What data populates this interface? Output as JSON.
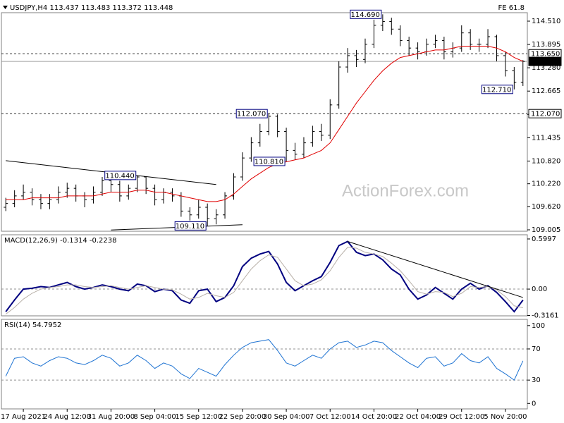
{
  "chart_data": [
    {
      "type": "ohlc",
      "title": "USDJPY,H4  113.437 113.483 113.372 113.448",
      "note": "FE 61.8",
      "watermark": "ActionForex.com",
      "color": "#000000",
      "categories": [
        null,
        null,
        "17 Aug 2021",
        null,
        null,
        null,
        null,
        "24 Aug 12:00",
        null,
        null,
        null,
        null,
        "31 Aug 20:00",
        null,
        null,
        null,
        null,
        "8 Sep 04:00",
        null,
        null,
        null,
        null,
        "15 Sep 12:00",
        null,
        null,
        null,
        null,
        "22 Sep 20:00",
        null,
        null,
        null,
        null,
        "30 Sep 04:00",
        null,
        null,
        null,
        null,
        "7 Oct 12:00",
        null,
        null,
        null,
        null,
        "14 Oct 20:00",
        null,
        null,
        null,
        null,
        "22 Oct 04:00",
        null,
        null,
        null,
        null,
        "29 Oct 12:00",
        null,
        null,
        null,
        null,
        "5 Nov 20:00",
        null,
        null
      ],
      "open": [
        109.6,
        109.7,
        109.9,
        110.0,
        109.8,
        109.7,
        109.8,
        110.0,
        110.1,
        109.9,
        109.8,
        110.0,
        110.3,
        110.2,
        109.9,
        110.1,
        110.4,
        110.1,
        109.8,
        110.0,
        109.9,
        109.5,
        109.4,
        109.6,
        109.3,
        109.4,
        109.9,
        110.4,
        110.9,
        111.3,
        111.6,
        112.0,
        111.6,
        111.1,
        111.0,
        111.3,
        111.6,
        111.5,
        112.3,
        113.3,
        113.6,
        113.5,
        113.9,
        114.4,
        114.5,
        114.3,
        114.0,
        113.8,
        113.7,
        113.9,
        114.0,
        113.7,
        113.8,
        114.2,
        113.9,
        113.9,
        114.1,
        113.6,
        113.2,
        112.9
      ],
      "high": [
        109.85,
        110.05,
        110.2,
        110.1,
        109.95,
        109.95,
        110.15,
        110.25,
        110.2,
        110.0,
        110.15,
        110.4,
        110.4,
        110.3,
        110.2,
        110.44,
        110.4,
        110.2,
        110.1,
        110.1,
        110.0,
        109.6,
        109.8,
        109.7,
        109.55,
        110.0,
        110.5,
        111.05,
        111.45,
        111.8,
        112.07,
        112.05,
        111.7,
        111.3,
        111.45,
        111.75,
        111.8,
        112.45,
        113.45,
        113.8,
        113.75,
        114.05,
        114.55,
        114.69,
        114.6,
        114.4,
        114.1,
        113.95,
        114.05,
        114.15,
        114.1,
        113.95,
        114.4,
        114.3,
        114.05,
        114.3,
        114.15,
        113.7,
        113.3,
        113.483
      ],
      "low": [
        109.5,
        109.6,
        109.8,
        109.65,
        109.55,
        109.55,
        109.7,
        109.85,
        109.75,
        109.6,
        109.7,
        109.9,
        110.0,
        109.75,
        109.8,
        110.0,
        109.95,
        109.65,
        109.7,
        109.75,
        109.35,
        109.25,
        109.3,
        109.11,
        109.15,
        109.3,
        109.8,
        110.3,
        110.8,
        111.2,
        111.5,
        111.45,
        110.81,
        110.85,
        110.9,
        111.2,
        111.35,
        111.4,
        112.2,
        113.15,
        113.3,
        113.4,
        113.8,
        114.25,
        114.15,
        113.85,
        113.6,
        113.5,
        113.6,
        113.8,
        113.5,
        113.55,
        113.7,
        113.75,
        113.7,
        113.8,
        113.45,
        113.05,
        112.71,
        112.8
      ],
      "close": [
        109.7,
        109.9,
        110.0,
        109.8,
        109.7,
        109.8,
        110.0,
        110.1,
        109.9,
        109.8,
        110.0,
        110.3,
        110.2,
        109.9,
        110.1,
        110.4,
        110.1,
        109.8,
        110.0,
        109.9,
        109.5,
        109.4,
        109.6,
        109.3,
        109.4,
        109.9,
        110.4,
        110.9,
        111.3,
        111.6,
        112.0,
        111.6,
        111.1,
        111.0,
        111.3,
        111.6,
        111.5,
        112.3,
        113.3,
        113.6,
        113.5,
        113.9,
        114.4,
        114.5,
        114.3,
        114.0,
        113.8,
        113.7,
        113.9,
        114.0,
        113.7,
        113.8,
        114.2,
        113.9,
        113.9,
        114.1,
        113.6,
        113.2,
        112.9,
        113.448
      ],
      "series": [
        {
          "color": "#e00000",
          "values": [
            109.8,
            109.8,
            109.8,
            109.85,
            109.85,
            109.85,
            109.85,
            109.9,
            109.9,
            109.9,
            109.9,
            109.95,
            110.0,
            110.0,
            110.0,
            110.05,
            110.05,
            110.0,
            110.0,
            109.95,
            109.9,
            109.85,
            109.8,
            109.75,
            109.75,
            109.8,
            109.95,
            110.15,
            110.35,
            110.5,
            110.65,
            110.75,
            110.8,
            110.85,
            110.9,
            111.0,
            111.1,
            111.3,
            111.65,
            112.0,
            112.35,
            112.65,
            112.95,
            113.2,
            113.4,
            113.55,
            113.6,
            113.65,
            113.7,
            113.75,
            113.75,
            113.8,
            113.85,
            113.85,
            113.85,
            113.85,
            113.8,
            113.7,
            113.55,
            113.45
          ]
        }
      ],
      "ylim": [
        108.968,
        114.733
      ],
      "yticks": [
        {
          "value": 114.51,
          "label": "114.510"
        },
        {
          "value": 113.895,
          "label": "113.895"
        },
        {
          "value": 113.28,
          "label": "113.280"
        },
        {
          "value": 112.665,
          "label": "112.665"
        },
        {
          "value": 112.05,
          "label": "112.050"
        },
        {
          "value": 111.435,
          "label": "111.435"
        },
        {
          "value": 110.82,
          "label": "110.820"
        },
        {
          "value": 110.22,
          "label": "110.220"
        },
        {
          "value": 109.62,
          "label": "109.620"
        },
        {
          "value": 109.005,
          "label": "109.005"
        }
      ],
      "levels": [
        {
          "value": 113.65,
          "label": "113.650",
          "style": "dashed"
        },
        {
          "value": 113.448,
          "label": "113.448",
          "style": "current"
        },
        {
          "value": 112.07,
          "label": "112.070",
          "style": "dashed"
        }
      ],
      "annotations": [
        {
          "value": 110.44,
          "label": "110.440"
        },
        {
          "value": 109.11,
          "label": "109.110"
        },
        {
          "value": 112.07,
          "label": "112.070"
        },
        {
          "value": 110.81,
          "label": "110.810"
        },
        {
          "value": 114.69,
          "label": "114.690"
        },
        {
          "value": 112.71,
          "label": "112.710"
        }
      ],
      "trendlines": [
        {
          "x": [
            0,
            24
          ],
          "y": [
            110.83,
            110.2
          ]
        },
        {
          "x": [
            12,
            27
          ],
          "y": [
            109.0,
            109.14
          ]
        }
      ]
    },
    {
      "type": "line",
      "title": "MACD(12,26,9) -0.1314 -0.2238",
      "series": [
        {
          "color": "#000080",
          "width": 2,
          "values": [
            -0.27,
            -0.13,
            0.0,
            0.01,
            0.03,
            0.02,
            0.05,
            0.08,
            0.03,
            0.0,
            0.02,
            0.05,
            0.03,
            0.0,
            -0.02,
            0.06,
            0.04,
            -0.03,
            0.0,
            -0.02,
            -0.13,
            -0.17,
            -0.02,
            0.0,
            -0.15,
            -0.1,
            0.04,
            0.27,
            0.37,
            0.42,
            0.45,
            0.3,
            0.08,
            -0.02,
            0.04,
            0.1,
            0.15,
            0.32,
            0.52,
            0.57,
            0.44,
            0.4,
            0.42,
            0.35,
            0.24,
            0.17,
            0.0,
            -0.12,
            -0.07,
            0.02,
            -0.05,
            -0.12,
            0.0,
            0.07,
            0.0,
            0.04,
            -0.04,
            -0.15,
            -0.27,
            -0.1314
          ]
        },
        {
          "color": "#b8b0a8",
          "width": 1,
          "values": [
            -0.3,
            -0.22,
            -0.12,
            -0.05,
            0.0,
            0.02,
            0.03,
            0.05,
            0.05,
            0.03,
            0.02,
            0.03,
            0.04,
            0.02,
            0.0,
            0.02,
            0.04,
            0.02,
            0.0,
            -0.01,
            -0.06,
            -0.12,
            -0.1,
            -0.05,
            -0.08,
            -0.1,
            -0.04,
            0.1,
            0.24,
            0.34,
            0.41,
            0.38,
            0.24,
            0.1,
            0.04,
            0.06,
            0.11,
            0.22,
            0.38,
            0.5,
            0.49,
            0.44,
            0.42,
            0.39,
            0.31,
            0.22,
            0.1,
            -0.03,
            -0.06,
            -0.03,
            -0.04,
            -0.09,
            -0.05,
            0.03,
            0.02,
            0.03,
            -0.01,
            -0.09,
            -0.2,
            -0.2238
          ]
        }
      ],
      "ylim": [
        -0.32,
        0.65
      ],
      "yticks": [
        0.5997,
        {
          "value": 0,
          "label": "0.00"
        },
        -0.3161
      ],
      "dashed_levels": [
        0
      ],
      "trendlines": [
        {
          "x": [
            39,
            59
          ],
          "y": [
            0.57,
            -0.1
          ]
        }
      ]
    },
    {
      "type": "line",
      "title": "RSI(14) 54.7952",
      "series": [
        {
          "color": "#1e73d2",
          "width": 1,
          "values": [
            35,
            58,
            60,
            52,
            48,
            55,
            60,
            58,
            52,
            50,
            55,
            62,
            58,
            48,
            52,
            62,
            55,
            45,
            52,
            48,
            38,
            32,
            45,
            40,
            35,
            50,
            62,
            72,
            78,
            80,
            82,
            68,
            52,
            48,
            55,
            62,
            58,
            70,
            78,
            80,
            72,
            75,
            80,
            78,
            68,
            60,
            52,
            46,
            58,
            60,
            48,
            52,
            64,
            55,
            52,
            60,
            45,
            38,
            30,
            54.7952
          ]
        }
      ],
      "ylim": [
        -7,
        108
      ],
      "yticks": [
        100,
        70,
        30,
        0
      ],
      "dashed_levels": [
        70,
        30
      ]
    }
  ]
}
